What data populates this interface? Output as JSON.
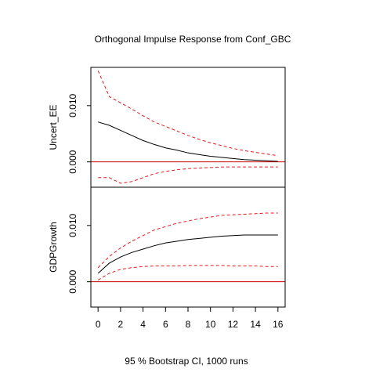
{
  "chart_data": {
    "type": "line",
    "title": "Orthogonal Impulse Response from Conf_GBC",
    "xlabel": "95 % Bootstrap CI,  1000 runs",
    "x": [
      0,
      1,
      2,
      3,
      4,
      5,
      6,
      7,
      8,
      9,
      10,
      11,
      12,
      13,
      14,
      15,
      16
    ],
    "x_ticks": [
      "0",
      "2",
      "4",
      "6",
      "8",
      "10",
      "12",
      "14",
      "16"
    ],
    "xlim": [
      -0.64,
      16.64
    ],
    "colors": {
      "response": "#000000",
      "ci": "#e41a1c",
      "zero_line": "#cc0000"
    },
    "panels": [
      {
        "ylabel": "Uncert_EE",
        "ylim": [
          -0.0045,
          0.0168
        ],
        "y_ticks": [
          "0.000",
          "0.010"
        ],
        "series": [
          {
            "role": "response",
            "values": [
              0.0071,
              0.0065,
              0.0056,
              0.0047,
              0.0038,
              0.0031,
              0.0025,
              0.0021,
              0.0016,
              0.0013,
              0.001,
              0.0008,
              0.0006,
              0.0004,
              0.0003,
              0.0002,
              0.0001
            ]
          },
          {
            "role": "ci-upper",
            "values": [
              0.0162,
              0.0116,
              0.0105,
              0.0094,
              0.0082,
              0.0071,
              0.0063,
              0.0055,
              0.0047,
              0.004,
              0.0034,
              0.0029,
              0.0024,
              0.002,
              0.0017,
              0.0014,
              0.0011
            ]
          },
          {
            "role": "ci-lower",
            "values": [
              -0.0028,
              -0.0028,
              -0.0038,
              -0.0035,
              -0.0028,
              -0.0021,
              -0.0017,
              -0.0014,
              -0.0012,
              -0.0011,
              -0.001,
              -0.0009,
              -0.0009,
              -0.0009,
              -0.0009,
              -0.0009,
              -0.0009
            ]
          }
        ]
      },
      {
        "ylabel": "GDPGrowth",
        "ylim": [
          -0.0045,
          0.0168
        ],
        "y_ticks": [
          "0.000",
          "0.010"
        ],
        "series": [
          {
            "role": "response",
            "values": [
              0.0015,
              0.0033,
              0.0044,
              0.0052,
              0.0058,
              0.0064,
              0.0069,
              0.0072,
              0.0075,
              0.0077,
              0.0079,
              0.0081,
              0.0082,
              0.0083,
              0.0083,
              0.0083,
              0.0083
            ]
          },
          {
            "role": "ci-upper",
            "values": [
              0.0025,
              0.0045,
              0.006,
              0.0072,
              0.0082,
              0.0092,
              0.0098,
              0.0104,
              0.0108,
              0.0112,
              0.0115,
              0.0118,
              0.0119,
              0.012,
              0.0121,
              0.0122,
              0.0122
            ]
          },
          {
            "role": "ci-lower",
            "values": [
              0.0003,
              0.0015,
              0.0022,
              0.0025,
              0.0027,
              0.0028,
              0.0028,
              0.0028,
              0.0029,
              0.0029,
              0.0029,
              0.0029,
              0.0028,
              0.0028,
              0.0028,
              0.0027,
              0.0027
            ]
          }
        ]
      }
    ]
  }
}
